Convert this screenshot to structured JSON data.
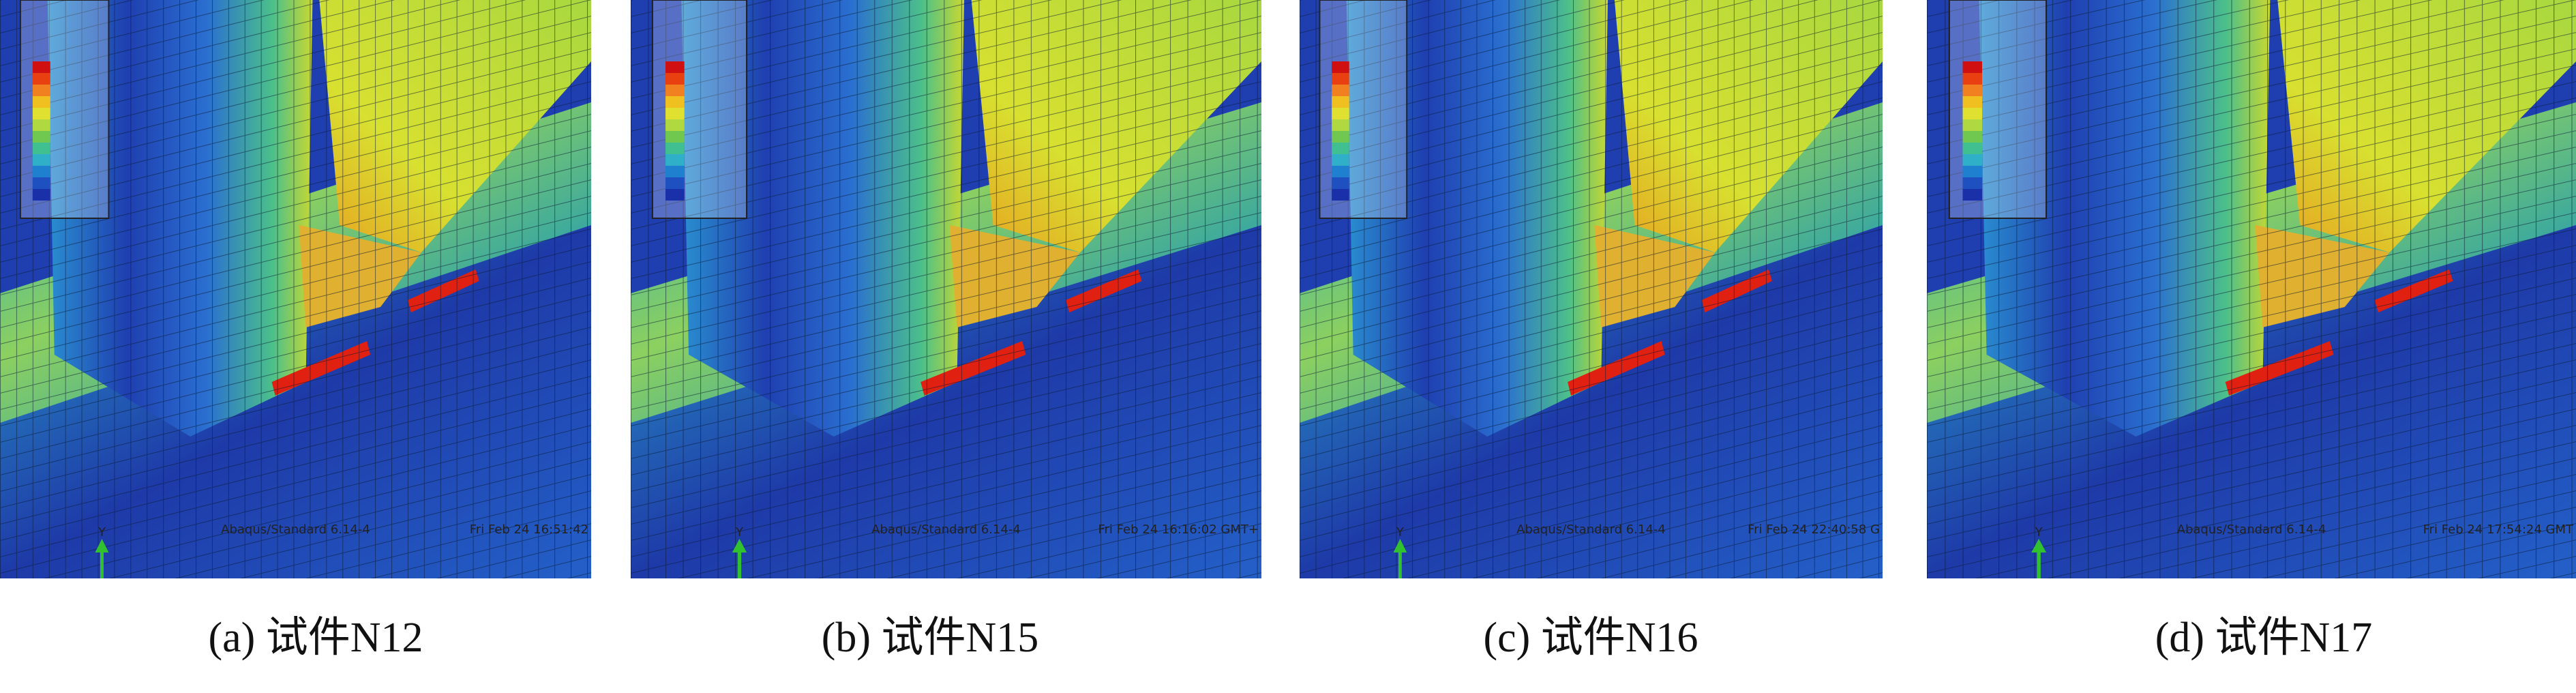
{
  "panels": [
    {
      "caption": "(a) 试件N12",
      "timestamp": "Fri Feb 24 16:51:42",
      "solver": "Abaqus/Standard 6.14-4",
      "axis_label": "Y"
    },
    {
      "caption": "(b) 试件N15",
      "timestamp": "Fri Feb 24 16:16:02 GMT+",
      "solver": "Abaqus/Standard 6.14-4",
      "axis_label": "Y"
    },
    {
      "caption": "(c) 试件N16",
      "timestamp": "Fri Feb 24 22:40:58 G",
      "solver": "Abaqus/Standard 6.14-4",
      "axis_label": "Y"
    },
    {
      "caption": "(d) 试件N17",
      "timestamp": "Fri Feb 24 17:54:24 GMT",
      "solver": "Abaqus/Standard 6.14-4",
      "axis_label": "Y"
    }
  ]
}
